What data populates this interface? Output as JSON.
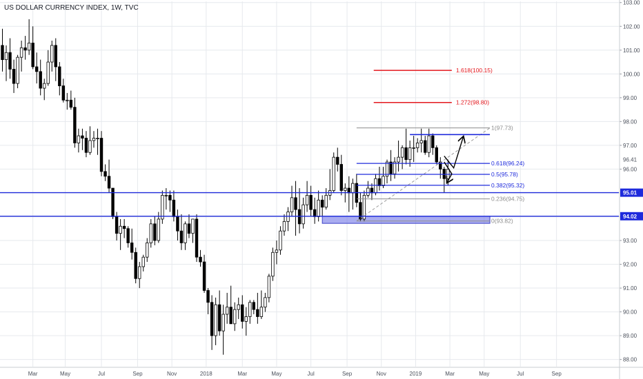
{
  "chart_data": {
    "type": "candlestick",
    "title": "US DOLLAR CURRENCY INDEX, 1W, TVC",
    "ylim": [
      87.7,
      103.05
    ],
    "y_ticks": [
      88.0,
      89.0,
      90.0,
      91.0,
      92.0,
      93.0,
      94.0,
      95.0,
      96.0,
      97.0,
      98.0,
      99.0,
      100.0,
      101.0,
      102.0,
      103.0
    ],
    "y_tick_labels": [
      "88.00",
      "89.00",
      "90.00",
      "91.00",
      "92.00",
      "93.00",
      "94.00",
      "95.00",
      "96.00",
      "97.00",
      "98.00",
      "99.00",
      "100.00",
      "101.00",
      "102.00",
      "103.00"
    ],
    "x_range_weeks": [
      0,
      155
    ],
    "x_ticks": [
      {
        "label": "Mar",
        "week": 8
      },
      {
        "label": "May",
        "week": 16.5
      },
      {
        "label": "Jul",
        "week": 26
      },
      {
        "label": "Sep",
        "week": 35.5
      },
      {
        "label": "Nov",
        "week": 44.5
      },
      {
        "label": "2018",
        "week": 53.5
      },
      {
        "label": "Mar",
        "week": 63
      },
      {
        "label": "May",
        "week": 72
      },
      {
        "label": "Jul",
        "week": 81
      },
      {
        "label": "Sep",
        "week": 90.5
      },
      {
        "label": "Nov",
        "week": 99.5
      },
      {
        "label": "2019",
        "week": 108.5
      },
      {
        "label": "Mar",
        "week": 117.5
      },
      {
        "label": "May",
        "week": 126.5
      },
      {
        "label": "Jul",
        "week": 136
      },
      {
        "label": "Sep",
        "week": 145.5
      }
    ],
    "candles": [
      {
        "o": 101.2,
        "h": 101.9,
        "l": 100.1,
        "c": 100.6
      },
      {
        "o": 100.6,
        "h": 101.2,
        "l": 99.7,
        "c": 100.9
      },
      {
        "o": 100.9,
        "h": 101.5,
        "l": 99.8,
        "c": 100.2
      },
      {
        "o": 100.2,
        "h": 100.6,
        "l": 99.2,
        "c": 99.6
      },
      {
        "o": 99.6,
        "h": 100.8,
        "l": 99.4,
        "c": 100.7
      },
      {
        "o": 100.7,
        "h": 101.4,
        "l": 100.1,
        "c": 101.1
      },
      {
        "o": 101.1,
        "h": 101.6,
        "l": 100.6,
        "c": 101.0
      },
      {
        "o": 101.0,
        "h": 102.3,
        "l": 100.8,
        "c": 101.3
      },
      {
        "o": 101.3,
        "h": 102.0,
        "l": 100.2,
        "c": 100.3
      },
      {
        "o": 100.3,
        "h": 100.9,
        "l": 99.6,
        "c": 100.1
      },
      {
        "o": 100.1,
        "h": 100.6,
        "l": 99.1,
        "c": 99.4
      },
      {
        "o": 99.4,
        "h": 99.8,
        "l": 98.9,
        "c": 99.6
      },
      {
        "o": 99.6,
        "h": 101.0,
        "l": 99.5,
        "c": 100.5
      },
      {
        "o": 100.5,
        "h": 101.4,
        "l": 100.1,
        "c": 101.2
      },
      {
        "o": 101.2,
        "h": 101.5,
        "l": 99.7,
        "c": 100.3
      },
      {
        "o": 100.3,
        "h": 100.5,
        "l": 99.1,
        "c": 99.5
      },
      {
        "o": 99.5,
        "h": 99.8,
        "l": 98.8,
        "c": 98.9
      },
      {
        "o": 98.9,
        "h": 99.2,
        "l": 98.5,
        "c": 98.9
      },
      {
        "o": 98.9,
        "h": 99.3,
        "l": 98.5,
        "c": 98.6
      },
      {
        "o": 98.6,
        "h": 99.0,
        "l": 96.9,
        "c": 97.1
      },
      {
        "o": 97.1,
        "h": 97.7,
        "l": 96.7,
        "c": 97.4
      },
      {
        "o": 97.4,
        "h": 97.7,
        "l": 96.8,
        "c": 97.3
      },
      {
        "o": 97.3,
        "h": 97.6,
        "l": 96.5,
        "c": 96.7
      },
      {
        "o": 96.7,
        "h": 97.8,
        "l": 96.6,
        "c": 97.2
      },
      {
        "o": 97.2,
        "h": 97.6,
        "l": 96.9,
        "c": 97.3
      },
      {
        "o": 97.3,
        "h": 97.7,
        "l": 96.6,
        "c": 97.3
      },
      {
        "o": 97.3,
        "h": 97.6,
        "l": 95.7,
        "c": 95.9
      },
      {
        "o": 95.9,
        "h": 96.2,
        "l": 95.5,
        "c": 95.7
      },
      {
        "o": 95.7,
        "h": 96.4,
        "l": 95.0,
        "c": 95.2
      },
      {
        "o": 95.2,
        "h": 95.2,
        "l": 93.9,
        "c": 94.0
      },
      {
        "o": 94.0,
        "h": 94.2,
        "l": 93.0,
        "c": 93.3
      },
      {
        "o": 93.3,
        "h": 93.9,
        "l": 92.6,
        "c": 93.6
      },
      {
        "o": 93.6,
        "h": 93.9,
        "l": 93.1,
        "c": 93.5
      },
      {
        "o": 93.5,
        "h": 93.6,
        "l": 92.7,
        "c": 92.9
      },
      {
        "o": 92.9,
        "h": 93.5,
        "l": 92.2,
        "c": 92.5
      },
      {
        "o": 92.5,
        "h": 92.7,
        "l": 91.2,
        "c": 91.4
      },
      {
        "o": 91.4,
        "h": 92.1,
        "l": 91.0,
        "c": 91.9
      },
      {
        "o": 91.9,
        "h": 92.4,
        "l": 91.7,
        "c": 92.3
      },
      {
        "o": 92.3,
        "h": 93.1,
        "l": 92.1,
        "c": 92.9
      },
      {
        "o": 92.9,
        "h": 93.9,
        "l": 92.7,
        "c": 93.7
      },
      {
        "o": 93.7,
        "h": 94.0,
        "l": 92.8,
        "c": 93.0
      },
      {
        "o": 93.0,
        "h": 94.2,
        "l": 92.9,
        "c": 93.9
      },
      {
        "o": 93.9,
        "h": 95.1,
        "l": 93.7,
        "c": 94.9
      },
      {
        "o": 94.9,
        "h": 95.2,
        "l": 94.3,
        "c": 94.9
      },
      {
        "o": 94.9,
        "h": 95.1,
        "l": 94.2,
        "c": 94.7
      },
      {
        "o": 94.7,
        "h": 95.1,
        "l": 93.8,
        "c": 94.0
      },
      {
        "o": 94.0,
        "h": 94.3,
        "l": 93.0,
        "c": 93.4
      },
      {
        "o": 93.4,
        "h": 94.1,
        "l": 92.6,
        "c": 92.9
      },
      {
        "o": 92.9,
        "h": 93.8,
        "l": 92.6,
        "c": 93.7
      },
      {
        "o": 93.7,
        "h": 94.1,
        "l": 93.1,
        "c": 93.3
      },
      {
        "o": 93.3,
        "h": 93.8,
        "l": 92.9,
        "c": 93.9
      },
      {
        "o": 93.9,
        "h": 94.1,
        "l": 92.1,
        "c": 92.3
      },
      {
        "o": 92.3,
        "h": 92.6,
        "l": 91.9,
        "c": 92.1
      },
      {
        "o": 92.1,
        "h": 92.4,
        "l": 90.8,
        "c": 90.9
      },
      {
        "o": 90.9,
        "h": 91.0,
        "l": 89.9,
        "c": 90.4
      },
      {
        "o": 90.4,
        "h": 90.7,
        "l": 88.4,
        "c": 89.0
      },
      {
        "o": 89.0,
        "h": 90.6,
        "l": 88.6,
        "c": 90.3
      },
      {
        "o": 90.3,
        "h": 90.9,
        "l": 89.0,
        "c": 89.2
      },
      {
        "o": 89.2,
        "h": 90.3,
        "l": 88.2,
        "c": 89.9
      },
      {
        "o": 89.9,
        "h": 90.8,
        "l": 89.5,
        "c": 90.2
      },
      {
        "o": 90.2,
        "h": 91.1,
        "l": 89.6,
        "c": 89.5
      },
      {
        "o": 89.5,
        "h": 90.4,
        "l": 89.2,
        "c": 90.1
      },
      {
        "o": 90.1,
        "h": 90.6,
        "l": 89.7,
        "c": 90.3
      },
      {
        "o": 90.3,
        "h": 90.7,
        "l": 89.3,
        "c": 89.6
      },
      {
        "o": 89.6,
        "h": 90.2,
        "l": 89.0,
        "c": 89.8
      },
      {
        "o": 89.8,
        "h": 90.5,
        "l": 89.5,
        "c": 90.4
      },
      {
        "o": 90.4,
        "h": 90.5,
        "l": 89.9,
        "c": 90.1
      },
      {
        "o": 90.1,
        "h": 90.8,
        "l": 89.5,
        "c": 89.8
      },
      {
        "o": 89.8,
        "h": 90.9,
        "l": 89.7,
        "c": 90.2
      },
      {
        "o": 90.2,
        "h": 90.8,
        "l": 90.0,
        "c": 90.6
      },
      {
        "o": 90.6,
        "h": 91.6,
        "l": 90.4,
        "c": 91.5
      },
      {
        "o": 91.5,
        "h": 92.7,
        "l": 91.3,
        "c": 92.5
      },
      {
        "o": 92.5,
        "h": 93.0,
        "l": 92.0,
        "c": 92.6
      },
      {
        "o": 92.6,
        "h": 93.6,
        "l": 92.4,
        "c": 93.4
      },
      {
        "o": 93.4,
        "h": 94.1,
        "l": 93.2,
        "c": 93.8
      },
      {
        "o": 93.8,
        "h": 94.4,
        "l": 93.4,
        "c": 94.2
      },
      {
        "o": 94.2,
        "h": 95.3,
        "l": 94.0,
        "c": 94.8
      },
      {
        "o": 94.8,
        "h": 95.5,
        "l": 93.2,
        "c": 94.3
      },
      {
        "o": 94.3,
        "h": 95.2,
        "l": 93.3,
        "c": 93.7
      },
      {
        "o": 93.7,
        "h": 94.8,
        "l": 93.5,
        "c": 94.5
      },
      {
        "o": 94.5,
        "h": 95.5,
        "l": 94.2,
        "c": 94.9
      },
      {
        "o": 94.9,
        "h": 95.3,
        "l": 94.0,
        "c": 94.3
      },
      {
        "o": 94.3,
        "h": 94.8,
        "l": 93.7,
        "c": 94.0
      },
      {
        "o": 94.0,
        "h": 95.1,
        "l": 93.8,
        "c": 94.7
      },
      {
        "o": 94.7,
        "h": 94.9,
        "l": 94.0,
        "c": 94.4
      },
      {
        "o": 94.4,
        "h": 95.2,
        "l": 94.3,
        "c": 94.9
      },
      {
        "o": 94.9,
        "h": 96.0,
        "l": 94.7,
        "c": 95.1
      },
      {
        "o": 95.1,
        "h": 96.7,
        "l": 95.0,
        "c": 96.5
      },
      {
        "o": 96.5,
        "h": 96.9,
        "l": 95.9,
        "c": 96.2
      },
      {
        "o": 96.2,
        "h": 96.6,
        "l": 94.9,
        "c": 95.1
      },
      {
        "o": 95.1,
        "h": 95.4,
        "l": 94.6,
        "c": 95.2
      },
      {
        "o": 95.2,
        "h": 95.7,
        "l": 94.2,
        "c": 95.0
      },
      {
        "o": 95.0,
        "h": 95.6,
        "l": 94.3,
        "c": 95.4
      },
      {
        "o": 95.4,
        "h": 95.8,
        "l": 94.4,
        "c": 94.6
      },
      {
        "o": 94.6,
        "h": 95.0,
        "l": 93.8,
        "c": 93.9
      },
      {
        "o": 93.9,
        "h": 95.1,
        "l": 93.8,
        "c": 94.9
      },
      {
        "o": 94.9,
        "h": 95.5,
        "l": 94.8,
        "c": 95.2
      },
      {
        "o": 95.2,
        "h": 95.4,
        "l": 94.7,
        "c": 95.0
      },
      {
        "o": 95.0,
        "h": 95.8,
        "l": 94.9,
        "c": 95.6
      },
      {
        "o": 95.6,
        "h": 96.1,
        "l": 95.1,
        "c": 95.3
      },
      {
        "o": 95.3,
        "h": 96.1,
        "l": 95.2,
        "c": 95.7
      },
      {
        "o": 95.7,
        "h": 96.4,
        "l": 95.4,
        "c": 96.3
      },
      {
        "o": 96.3,
        "h": 96.8,
        "l": 95.5,
        "c": 95.8
      },
      {
        "o": 95.8,
        "h": 96.5,
        "l": 95.6,
        "c": 96.3
      },
      {
        "o": 96.3,
        "h": 97.2,
        "l": 95.9,
        "c": 96.5
      },
      {
        "o": 96.5,
        "h": 97.0,
        "l": 96.0,
        "c": 96.9
      },
      {
        "o": 96.9,
        "h": 97.7,
        "l": 96.2,
        "c": 96.4
      },
      {
        "o": 96.4,
        "h": 97.2,
        "l": 96.1,
        "c": 96.9
      },
      {
        "o": 96.9,
        "h": 97.4,
        "l": 96.3,
        "c": 96.9
      },
      {
        "o": 96.9,
        "h": 97.3,
        "l": 96.7,
        "c": 97.1
      },
      {
        "o": 97.1,
        "h": 97.7,
        "l": 96.7,
        "c": 97.2
      },
      {
        "o": 97.2,
        "h": 97.4,
        "l": 96.6,
        "c": 96.7
      },
      {
        "o": 96.7,
        "h": 97.7,
        "l": 96.5,
        "c": 97.4
      },
      {
        "o": 97.4,
        "h": 97.5,
        "l": 96.6,
        "c": 96.9
      },
      {
        "o": 96.9,
        "h": 97.0,
        "l": 96.2,
        "c": 96.3
      },
      {
        "o": 96.3,
        "h": 96.5,
        "l": 95.6,
        "c": 96.0
      },
      {
        "o": 96.0,
        "h": 96.1,
        "l": 95.0,
        "c": 95.6
      },
      {
        "o": 95.6,
        "h": 96.4,
        "l": 95.3,
        "c": 96.0
      }
    ],
    "horizontal_lines": [
      {
        "price": 95.01,
        "color": "#1e2adc",
        "label": "95.01"
      },
      {
        "price": 94.02,
        "color": "#1e2adc",
        "label": "94.02"
      },
      {
        "price": 97.45,
        "color": "#1e2adc",
        "week_from": 107,
        "week_to": 128
      }
    ],
    "fib_extension": [
      {
        "label": "1.618(100.15)",
        "price": 100.15,
        "color": "#e3161c"
      },
      {
        "label": "1.272(98.80)",
        "price": 98.8,
        "color": "#e3161c"
      }
    ],
    "fib_retracement": {
      "week_from": 93,
      "week_to": 128,
      "levels": [
        {
          "label": "1(97.73)",
          "price": 97.73,
          "color": "#8c8c8c"
        },
        {
          "label": "0.618(96.24)",
          "price": 96.24,
          "color": "#1e2adc"
        },
        {
          "label": "0.5(95.78)",
          "price": 95.78,
          "color": "#1e2adc"
        },
        {
          "label": "0.382(95.32)",
          "price": 95.32,
          "color": "#1e2adc"
        },
        {
          "label": "0.236(94.75)",
          "price": 94.75,
          "color": "#8c8c8c"
        },
        {
          "label": "0(93.82)",
          "price": 93.82,
          "color": "#8c8c8c"
        }
      ],
      "zone": {
        "week_from": 84,
        "week_to": 128,
        "price_high": 94.02,
        "price_low": 93.72,
        "color": "#7b7fe8"
      }
    },
    "current_price": {
      "price": 96.41,
      "label": "96.41"
    },
    "projection_arrows": [
      {
        "points": [
          [
            116,
            96.55
          ],
          [
            118.5,
            96.05
          ],
          [
            121,
            97.35
          ]
        ]
      },
      {
        "points": [
          [
            116,
            96.3
          ],
          [
            118,
            95.8
          ],
          [
            116.8,
            95.45
          ]
        ]
      }
    ],
    "colors": {
      "up_body": "#ffffff",
      "down_body": "#000000",
      "wick": "#000000",
      "support_lines": "#1e2adc",
      "extension_lines": "#e3161c",
      "grid": "#e6e9ed"
    }
  }
}
